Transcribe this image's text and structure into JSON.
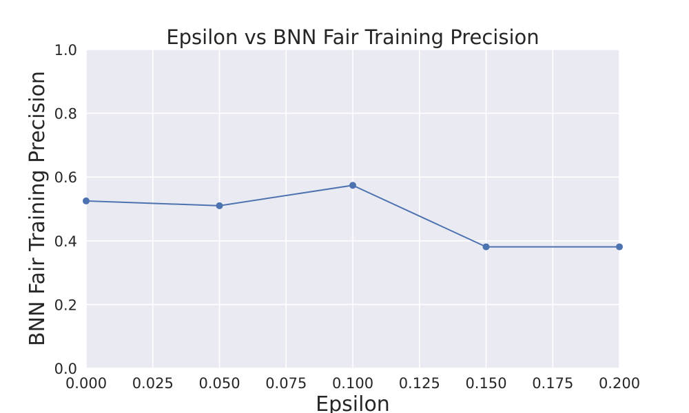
{
  "chart_data": {
    "type": "line",
    "title": "Epsilon vs BNN Fair Training Precision",
    "xlabel": "Epsilon",
    "ylabel": "BNN Fair Training Precision",
    "xlim": [
      0.0,
      0.2
    ],
    "ylim": [
      0.0,
      1.0
    ],
    "x_ticks": [
      "0.000",
      "0.025",
      "0.050",
      "0.075",
      "0.100",
      "0.125",
      "0.150",
      "0.175",
      "0.200"
    ],
    "y_ticks": [
      "0.0",
      "0.2",
      "0.4",
      "0.6",
      "0.8",
      "1.0"
    ],
    "grid": true,
    "series": [
      {
        "x": [
          0.0,
          0.05,
          0.1,
          0.15,
          0.2
        ],
        "values": [
          0.525,
          0.51,
          0.574,
          0.381,
          0.381
        ],
        "color": "#4c72b0",
        "marker": "circle"
      }
    ],
    "background": "#eaeaf2",
    "grid_color": "#ffffff"
  }
}
